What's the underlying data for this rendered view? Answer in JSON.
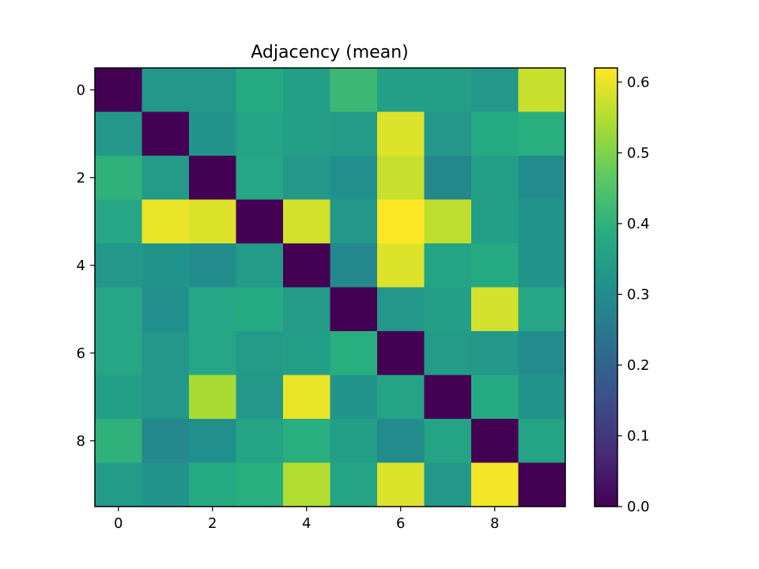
{
  "chart_data": {
    "type": "heatmap",
    "title": "Adjacency (mean)",
    "colormap": "viridis",
    "vmin": 0.0,
    "vmax": 0.62,
    "rows": [
      0,
      1,
      2,
      3,
      4,
      5,
      6,
      7,
      8,
      9
    ],
    "cols": [
      0,
      1,
      2,
      3,
      4,
      5,
      6,
      7,
      8,
      9
    ],
    "values": [
      [
        0.0,
        0.33,
        0.33,
        0.38,
        0.35,
        0.42,
        0.35,
        0.35,
        0.33,
        0.57
      ],
      [
        0.33,
        0.0,
        0.32,
        0.36,
        0.35,
        0.34,
        0.59,
        0.33,
        0.38,
        0.39
      ],
      [
        0.4,
        0.34,
        0.0,
        0.37,
        0.33,
        0.31,
        0.57,
        0.29,
        0.35,
        0.3
      ],
      [
        0.37,
        0.6,
        0.59,
        0.0,
        0.58,
        0.33,
        0.62,
        0.56,
        0.35,
        0.32
      ],
      [
        0.33,
        0.32,
        0.3,
        0.34,
        0.0,
        0.29,
        0.59,
        0.36,
        0.38,
        0.32
      ],
      [
        0.37,
        0.31,
        0.37,
        0.38,
        0.34,
        0.0,
        0.33,
        0.35,
        0.58,
        0.37
      ],
      [
        0.37,
        0.33,
        0.37,
        0.34,
        0.35,
        0.39,
        0.0,
        0.34,
        0.33,
        0.3
      ],
      [
        0.35,
        0.33,
        0.54,
        0.33,
        0.6,
        0.32,
        0.36,
        0.0,
        0.38,
        0.32
      ],
      [
        0.4,
        0.29,
        0.31,
        0.36,
        0.39,
        0.35,
        0.3,
        0.36,
        0.0,
        0.36
      ],
      [
        0.34,
        0.32,
        0.38,
        0.39,
        0.55,
        0.36,
        0.59,
        0.33,
        0.61,
        0.0
      ]
    ],
    "x_ticks": [
      0,
      2,
      4,
      6,
      8
    ],
    "y_ticks": [
      0,
      2,
      4,
      6,
      8
    ],
    "colorbar_ticks": [
      "0.0",
      "0.1",
      "0.2",
      "0.3",
      "0.4",
      "0.5",
      "0.6"
    ],
    "colorbar_tick_values": [
      0.0,
      0.1,
      0.2,
      0.3,
      0.4,
      0.5,
      0.6
    ]
  }
}
